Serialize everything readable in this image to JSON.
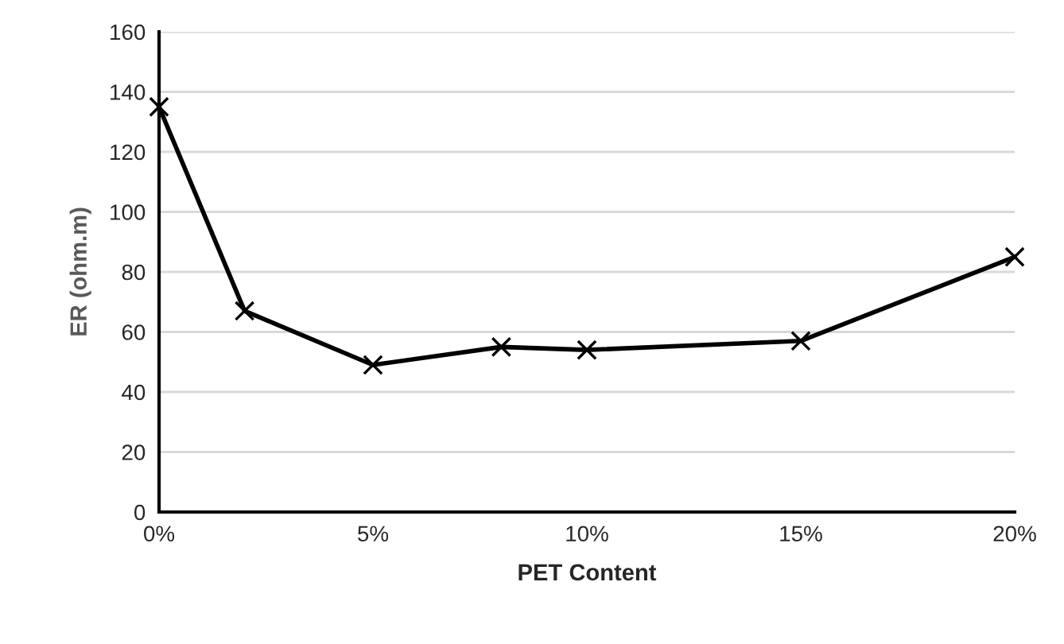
{
  "chart_data": {
    "type": "line",
    "xlabel": "PET Content",
    "ylabel": "ER (ohm.m)",
    "x": [
      0,
      2,
      5,
      8,
      10,
      15,
      20
    ],
    "series": [
      {
        "color": "#000000",
        "values": [
          135,
          67,
          49,
          55,
          54,
          57,
          85
        ]
      }
    ],
    "xlim": [
      0,
      20
    ],
    "xticks": [
      {
        "value": 0,
        "label": "0%"
      },
      {
        "value": 5,
        "label": "5%"
      },
      {
        "value": 10,
        "label": "10%"
      },
      {
        "value": 15,
        "label": "15%"
      },
      {
        "value": 20,
        "label": "20%"
      }
    ],
    "ylim": [
      0,
      160
    ],
    "yticks": [
      0,
      20,
      40,
      60,
      80,
      100,
      120,
      140,
      160
    ],
    "grid": "y",
    "marker": "cross",
    "line_style": "solid"
  }
}
